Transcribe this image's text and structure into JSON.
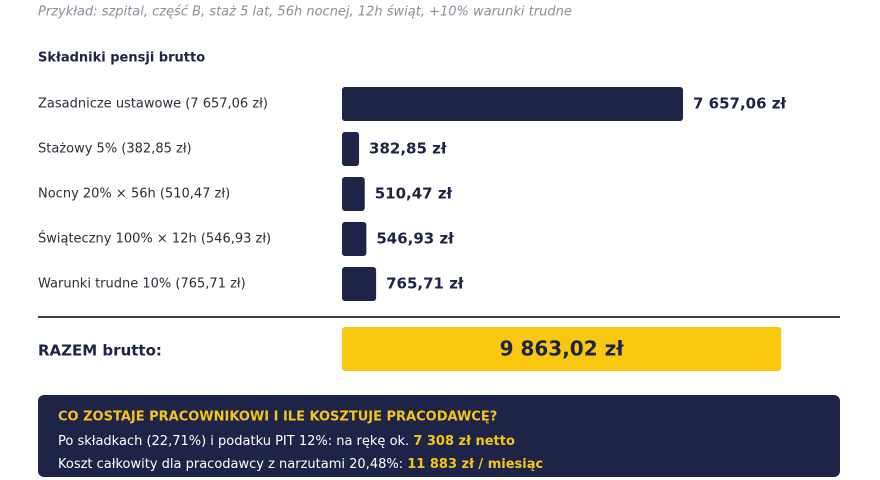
{
  "header": {
    "subtitle": "Przykład: szpital, część B, staż 5 lat, 56h nocnej, 12h świąt, +10% warunki trudne"
  },
  "chart_data": {
    "type": "bar",
    "orientation": "horizontal",
    "title": "Składniki pensji brutto",
    "categories": [
      "Zasadnicze ustawowe (7 657,06 zł)",
      "Stażowy 5% (382,85 zł)",
      "Nocny 20% × 56h (510,47 zł)",
      "Świąteczny 100% × 12h (546,93 zł)",
      "Warunki trudne 10% (765,71 zł)"
    ],
    "values": [
      7657.06,
      382.85,
      510.47,
      546.93,
      765.71
    ],
    "value_labels": [
      "7 657,06 zł",
      "382,85 zł",
      "510,47 zł",
      "546,93 zł",
      "765,71 zł"
    ],
    "color": "#1e2448",
    "total": {
      "label": "RAZEM brutto:",
      "value": 9863.02,
      "value_label": "9 863,02 zł",
      "color": "#f9c80e"
    }
  },
  "summary": {
    "title": "CO ZOSTAJE PRACOWNIKOWI I ILE KOSZTUJE PRACODAWCĘ?",
    "lines": [
      {
        "text": "Po składkach (22,71%) i podatku PIT 12%: na rękę ok. ",
        "highlight": "7 308 zł netto"
      },
      {
        "text": "Koszt całkowity dla pracodawcy z narzutami 20,48%: ",
        "highlight": "11 883 zł / miesiąc"
      }
    ]
  }
}
